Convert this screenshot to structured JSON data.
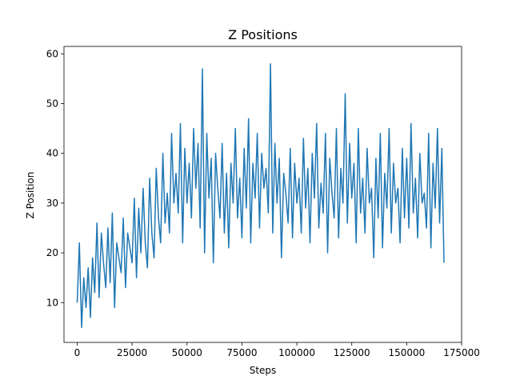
{
  "chart_data": {
    "type": "line",
    "title": "Z Positions",
    "xlabel": "Steps",
    "ylabel": "Z Position",
    "xlim": [
      -6000,
      175000
    ],
    "ylim": [
      2,
      61.5
    ],
    "xticks": [
      0,
      25000,
      50000,
      75000,
      100000,
      125000,
      150000,
      175000
    ],
    "yticks": [
      10,
      20,
      30,
      40,
      50,
      60
    ],
    "grid": false,
    "line_color": "#1f77b4",
    "series": [
      {
        "x": [
          0,
          1000,
          2000,
          3000,
          4000,
          5000,
          6000,
          7000,
          8000,
          9000,
          10000,
          11000,
          12000,
          13000,
          14000,
          15000,
          16000,
          17000,
          18000,
          19000,
          20000,
          21000,
          22000,
          23000,
          24000,
          25000,
          26000,
          27000,
          28000,
          29000,
          30000,
          31000,
          32000,
          33000,
          34000,
          35000,
          36000,
          37000,
          38000,
          39000,
          40000,
          41000,
          42000,
          43000,
          44000,
          45000,
          46000,
          47000,
          48000,
          49000,
          50000,
          51000,
          52000,
          53000,
          54000,
          55000,
          56000,
          57000,
          58000,
          59000,
          60000,
          61000,
          62000,
          63000,
          64000,
          65000,
          66000,
          67000,
          68000,
          69000,
          70000,
          71000,
          72000,
          73000,
          74000,
          75000,
          76000,
          77000,
          78000,
          79000,
          80000,
          81000,
          82000,
          83000,
          84000,
          85000,
          86000,
          87000,
          88000,
          89000,
          90000,
          91000,
          92000,
          93000,
          94000,
          95000,
          96000,
          97000,
          98000,
          99000,
          100000,
          101000,
          102000,
          103000,
          104000,
          105000,
          106000,
          107000,
          108000,
          109000,
          110000,
          111000,
          112000,
          113000,
          114000,
          115000,
          116000,
          117000,
          118000,
          119000,
          120000,
          121000,
          122000,
          123000,
          124000,
          125000,
          126000,
          127000,
          128000,
          129000,
          130000,
          131000,
          132000,
          133000,
          134000,
          135000,
          136000,
          137000,
          138000,
          139000,
          140000,
          141000,
          142000,
          143000,
          144000,
          145000,
          146000,
          147000,
          148000,
          149000,
          150000,
          151000,
          152000,
          153000,
          154000,
          155000,
          156000,
          157000,
          158000,
          159000,
          160000,
          161000,
          162000,
          163000,
          164000,
          165000,
          166000,
          167000
        ],
        "y": [
          10,
          22,
          5,
          15,
          9,
          17,
          7,
          19,
          12,
          26,
          11,
          24,
          18,
          13,
          25,
          14,
          28,
          9,
          22,
          19,
          16,
          27,
          13,
          24,
          21,
          18,
          31,
          15,
          29,
          20,
          33,
          22,
          17,
          35,
          24,
          19,
          37,
          27,
          22,
          40,
          26,
          32,
          24,
          44,
          30,
          36,
          28,
          46,
          22,
          41,
          30,
          38,
          27,
          45,
          33,
          42,
          25,
          57,
          20,
          44,
          31,
          39,
          18,
          40,
          33,
          27,
          42,
          24,
          36,
          21,
          38,
          30,
          45,
          27,
          35,
          23,
          41,
          29,
          47,
          22,
          38,
          31,
          44,
          25,
          40,
          33,
          37,
          28,
          58,
          24,
          42,
          30,
          39,
          19,
          36,
          32,
          26,
          41,
          23,
          38,
          30,
          35,
          24,
          43,
          29,
          37,
          22,
          40,
          31,
          46,
          25,
          34,
          28,
          44,
          20,
          39,
          32,
          27,
          45,
          23,
          37,
          30,
          52,
          26,
          42,
          31,
          38,
          22,
          45,
          28,
          35,
          24,
          41,
          30,
          33,
          19,
          39,
          27,
          44,
          21,
          36,
          29,
          45,
          24,
          38,
          30,
          33,
          22,
          41,
          27,
          39,
          25,
          46,
          28,
          35,
          23,
          40,
          30,
          32,
          25,
          44,
          21,
          38,
          29,
          45,
          26,
          41,
          18
        ]
      }
    ]
  }
}
